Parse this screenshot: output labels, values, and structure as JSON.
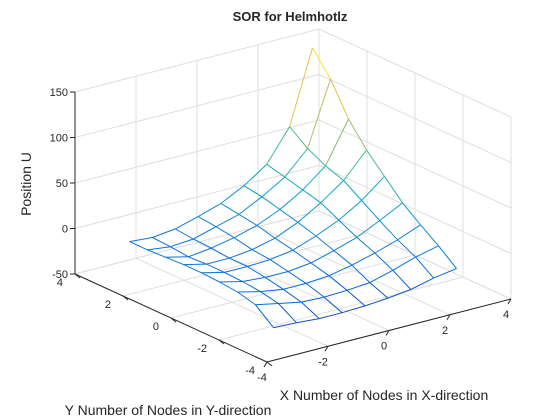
{
  "chart_data": {
    "type": "surface",
    "title": "SOR for Helmhotlz",
    "xlabel": "X Number of Nodes in X-direction",
    "ylabel": "Y Number of Nodes in Y-direction",
    "zlabel": "Position U",
    "xlim": [
      -4,
      4
    ],
    "ylim": [
      -4,
      4
    ],
    "zlim": [
      -50,
      150
    ],
    "x_ticks": [
      "-4",
      "-2",
      "0",
      "2",
      "4"
    ],
    "y_ticks": [
      "-4",
      "-2",
      "0",
      "2",
      "4"
    ],
    "z_ticks": [
      "-50",
      "0",
      "50",
      "100",
      "150"
    ],
    "grid": true,
    "colormap": "parula",
    "x": [
      -3,
      -2.25,
      -1.5,
      -0.75,
      0,
      0.75,
      1.5,
      2.25,
      3
    ],
    "y": [
      -3,
      -2.25,
      -1.5,
      -0.75,
      0,
      0.75,
      1.5,
      2.25,
      3
    ],
    "z": [
      [
        -33,
        -34,
        -36,
        -36,
        -35,
        -33,
        -30,
        -24,
        -20
      ],
      [
        -17,
        -22,
        -27,
        -28,
        -27,
        -25,
        -18,
        -10,
        -4
      ],
      [
        -12,
        -18,
        -22,
        -22,
        -20,
        -15,
        -8,
        0,
        10
      ],
      [
        -10,
        -16,
        -18,
        -18,
        -15,
        -8,
        0,
        12,
        25
      ],
      [
        -9,
        -15,
        -15,
        -14,
        -10,
        -1,
        10,
        25,
        45
      ],
      [
        -9,
        -15,
        -15,
        -12,
        -6,
        5,
        20,
        38,
        65
      ],
      [
        -10,
        -16,
        -13,
        -8,
        -1,
        10,
        25,
        45,
        90
      ],
      [
        -11,
        -14,
        -12,
        -5,
        2,
        15,
        30,
        55,
        125
      ],
      [
        -11,
        -13,
        -10,
        -3,
        5,
        18,
        35,
        70,
        150
      ]
    ]
  },
  "style": {
    "axis_color": "#262626",
    "grid_color": "#dfdfdf",
    "background": "#ffffff"
  }
}
